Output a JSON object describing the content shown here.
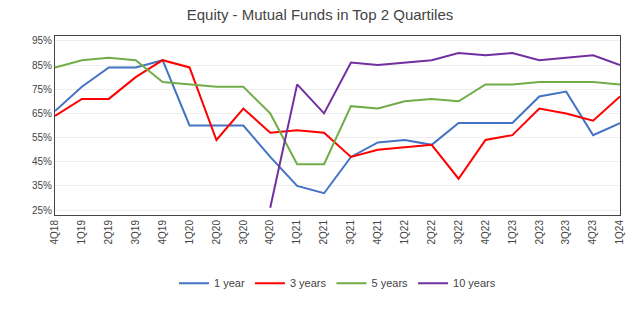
{
  "chart_data": {
    "type": "line",
    "title": "Equity - Mutual Funds in Top 2 Quartiles",
    "categories": [
      "4Q18",
      "1Q19",
      "2Q19",
      "3Q19",
      "4Q19",
      "1Q20",
      "2Q20",
      "3Q20",
      "4Q20",
      "1Q21",
      "2Q21",
      "3Q21",
      "4Q21",
      "1Q22",
      "2Q22",
      "3Q22",
      "4Q22",
      "1Q23",
      "2Q23",
      "3Q23",
      "4Q23",
      "1Q24"
    ],
    "series": [
      {
        "name": "1 year",
        "color": "#4472C4",
        "values": [
          0.66,
          0.76,
          0.84,
          0.84,
          0.87,
          0.6,
          0.6,
          0.6,
          0.47,
          0.35,
          0.32,
          0.47,
          0.53,
          0.54,
          0.52,
          0.61,
          0.61,
          0.61,
          0.72,
          0.74,
          0.56,
          0.61
        ]
      },
      {
        "name": "3 years",
        "color": "#FF0000",
        "values": [
          0.64,
          0.71,
          0.71,
          0.8,
          0.87,
          0.84,
          0.54,
          0.67,
          0.57,
          0.58,
          0.57,
          0.47,
          0.5,
          0.51,
          0.52,
          0.38,
          0.54,
          0.56,
          0.67,
          0.65,
          0.62,
          0.72
        ]
      },
      {
        "name": "5 years",
        "color": "#70AD47",
        "values": [
          0.84,
          0.87,
          0.88,
          0.87,
          0.78,
          0.77,
          0.76,
          0.76,
          0.65,
          0.44,
          0.44,
          0.68,
          0.67,
          0.7,
          0.71,
          0.7,
          0.77,
          0.77,
          0.78,
          0.78,
          0.78,
          0.77
        ]
      },
      {
        "name": "10 years",
        "color": "#7030A0",
        "values": [
          null,
          null,
          null,
          null,
          null,
          null,
          null,
          null,
          0.26,
          0.77,
          0.65,
          0.86,
          0.85,
          0.86,
          0.87,
          0.9,
          0.89,
          0.9,
          0.87,
          0.88,
          0.89,
          0.85
        ]
      }
    ],
    "ylim": [
      0.23,
      0.97
    ],
    "yticks": [
      {
        "value": 0.25,
        "label": "25%"
      },
      {
        "value": 0.35,
        "label": "35%"
      },
      {
        "value": 0.45,
        "label": "45%"
      },
      {
        "value": 0.55,
        "label": "55%"
      },
      {
        "value": 0.65,
        "label": "65%"
      },
      {
        "value": 0.75,
        "label": "75%"
      },
      {
        "value": 0.85,
        "label": "85%"
      },
      {
        "value": 0.95,
        "label": "95%"
      }
    ],
    "grid": true,
    "legend": "bottom"
  }
}
